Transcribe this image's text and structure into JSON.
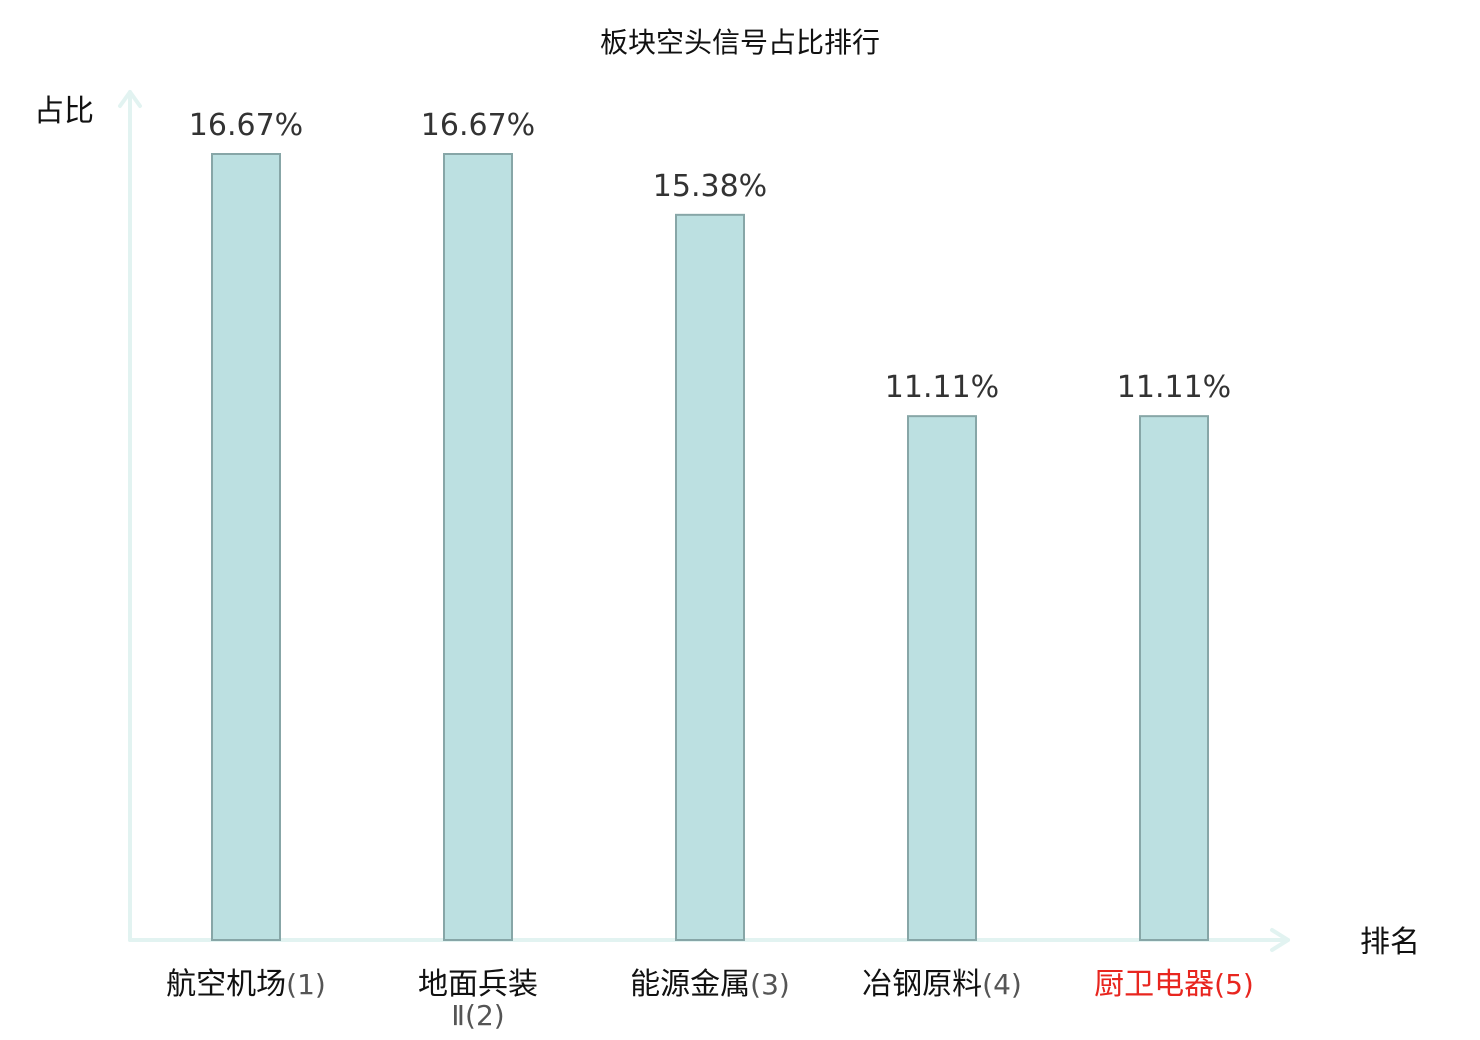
{
  "chart_data": {
    "type": "bar",
    "title": "板块空头信号占比排行",
    "ylabel": "占比",
    "xlabel": "排名",
    "ylim": [
      0,
      16.67
    ],
    "grid": false,
    "categories": [
      {
        "name": "航空机场",
        "rank_label": "(1)",
        "highlight": false
      },
      {
        "name": "地面兵装",
        "name_line2": "Ⅱ",
        "rank_label": "(2)",
        "highlight": false
      },
      {
        "name": "能源金属",
        "rank_label": "(3)",
        "highlight": false
      },
      {
        "name": "冶钢原料",
        "rank_label": "(4)",
        "highlight": false
      },
      {
        "name": "厨卫电器",
        "rank_label": "(5)",
        "highlight": true
      }
    ],
    "values": [
      16.67,
      16.67,
      15.38,
      11.11,
      11.11
    ],
    "value_labels": [
      "16.67%",
      "16.67%",
      "15.38%",
      "11.11%",
      "11.11%"
    ]
  },
  "colors": {
    "bar_fill": "#bce0e1",
    "bar_stroke": "#87a6a7",
    "axis": "#e2f3f1",
    "text": "#111111",
    "value_text": "#333333",
    "rank_text": "#555555",
    "highlight": "#e8261f"
  }
}
